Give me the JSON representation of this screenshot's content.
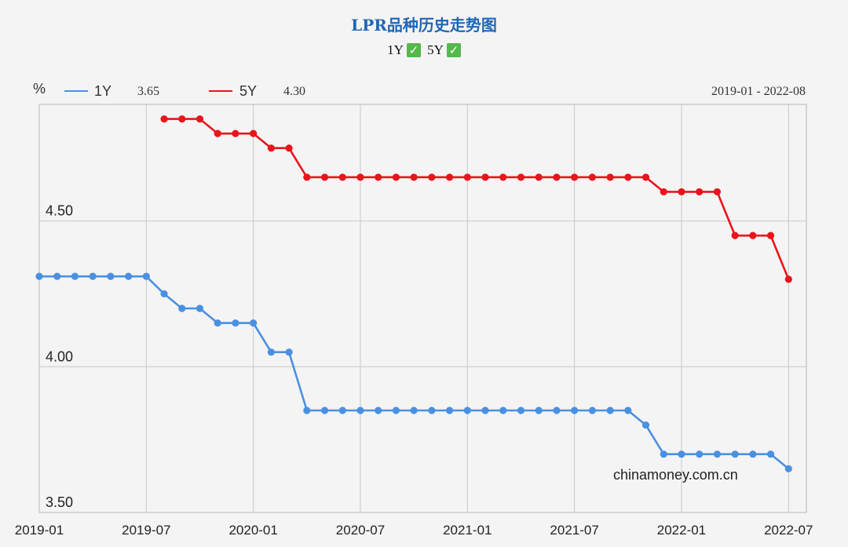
{
  "chart_data": {
    "type": "line",
    "title": "LPR品种历史走势图",
    "toggles": [
      {
        "label": "1Y",
        "checked": true
      },
      {
        "label": "5Y",
        "checked": true
      }
    ],
    "ylabel": "%",
    "range_label": "2019-01 - 2022-08",
    "watermark": "chinamoney.com.cn",
    "ylim": [
      3.5,
      4.9
    ],
    "yticks": [
      3.5,
      4.0,
      4.5
    ],
    "ytick_labels": [
      "3.50",
      "4.00",
      "4.50"
    ],
    "xlim": [
      "2019-01",
      "2022-08"
    ],
    "xticks": [
      "2019-01",
      "2019-07",
      "2020-01",
      "2020-07",
      "2021-01",
      "2021-07",
      "2022-01",
      "2022-07"
    ],
    "grid": true,
    "legend_position": "top-left",
    "series": [
      {
        "name": "1Y",
        "latest": "3.65",
        "color": "#4a90e2",
        "start": "2019-01",
        "values": [
          4.31,
          4.31,
          4.31,
          4.31,
          4.31,
          4.31,
          4.31,
          4.25,
          4.2,
          4.2,
          4.15,
          4.15,
          4.15,
          4.05,
          4.05,
          3.85,
          3.85,
          3.85,
          3.85,
          3.85,
          3.85,
          3.85,
          3.85,
          3.85,
          3.85,
          3.85,
          3.85,
          3.85,
          3.85,
          3.85,
          3.85,
          3.85,
          3.85,
          3.85,
          3.8,
          3.7,
          3.7,
          3.7,
          3.7,
          3.7,
          3.7,
          3.7,
          3.65
        ]
      },
      {
        "name": "5Y",
        "latest": "4.30",
        "color": "#e8151b",
        "start": "2019-08",
        "values": [
          4.85,
          4.85,
          4.85,
          4.8,
          4.8,
          4.8,
          4.75,
          4.75,
          4.65,
          4.65,
          4.65,
          4.65,
          4.65,
          4.65,
          4.65,
          4.65,
          4.65,
          4.65,
          4.65,
          4.65,
          4.65,
          4.65,
          4.65,
          4.65,
          4.65,
          4.65,
          4.65,
          4.65,
          4.6,
          4.6,
          4.6,
          4.6,
          4.45,
          4.45,
          4.45,
          4.3
        ]
      }
    ]
  }
}
